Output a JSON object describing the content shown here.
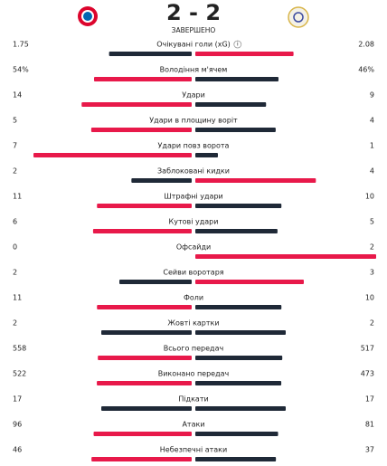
{
  "header": {
    "score": "2 - 2",
    "status": "ЗАВЕРШЕНО"
  },
  "stats": [
    {
      "label": "Очікувані голи (xG)",
      "home": 1.75,
      "away": 2.08
    },
    {
      "label": "Володіння м'ячем",
      "home": 54,
      "away": 46,
      "home_label": "54%",
      "away_label": "46%"
    },
    {
      "label": "Удари",
      "home": 14,
      "away": 9
    },
    {
      "label": "Удари в площину воріт",
      "home": 5,
      "away": 4
    },
    {
      "label": "Удари повз ворота",
      "home": 7,
      "away": 1
    },
    {
      "label": "Заблоковані кидки",
      "home": 2,
      "away": 4
    },
    {
      "label": "Штрафні удари",
      "home": 11,
      "away": 10
    },
    {
      "label": "Кутові удари",
      "home": 6,
      "away": 5
    },
    {
      "label": "Офсайди",
      "home": 0,
      "away": 2
    },
    {
      "label": "Сейви воротаря",
      "home": 2,
      "away": 3
    },
    {
      "label": "Фоли",
      "home": 11,
      "away": 10
    },
    {
      "label": "Жовті картки",
      "home": 2,
      "away": 2
    },
    {
      "label": "Всього передач",
      "home": 558,
      "away": 517
    },
    {
      "label": "Виконано передач",
      "home": 522,
      "away": 473
    },
    {
      "label": "Підкати",
      "home": 17,
      "away": 17
    },
    {
      "label": "Атаки",
      "home": 96,
      "away": 81
    },
    {
      "label": "Небезпечні атаки",
      "home": 46,
      "away": 37
    }
  ]
}
